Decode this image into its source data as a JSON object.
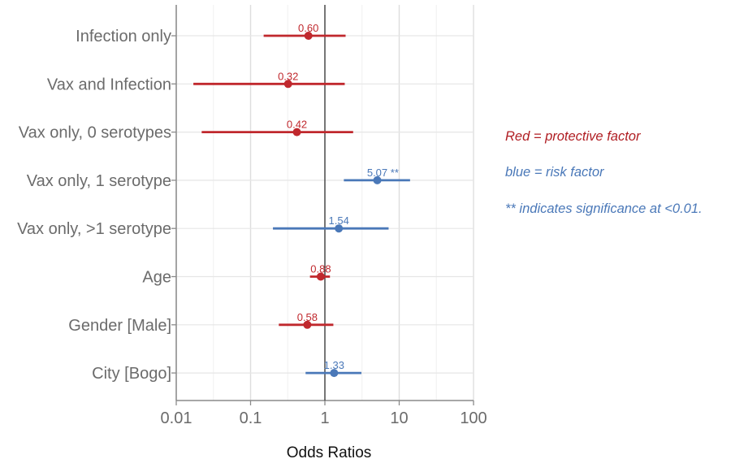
{
  "chart_data": {
    "type": "forest",
    "xlabel": "Odds Ratios",
    "x_scale": "log",
    "xlim": [
      0.01,
      100
    ],
    "x_ticks": [
      0.01,
      0.1,
      1,
      10,
      100
    ],
    "x_tick_labels": [
      "0.01",
      "0.1",
      "1",
      "10",
      "100"
    ],
    "reference_line": 1,
    "grid": true,
    "colors": {
      "protective": "#c0282d",
      "risk": "#4a78b8"
    },
    "rows": [
      {
        "label": "Infection only",
        "or": 0.6,
        "lower": 0.15,
        "upper": 1.9,
        "data_label": "0.60",
        "type": "protective"
      },
      {
        "label": "Vax and Infection",
        "or": 0.32,
        "lower": 0.017,
        "upper": 1.85,
        "data_label": "0.32",
        "type": "protective"
      },
      {
        "label": "Vax only, 0 serotypes",
        "or": 0.42,
        "lower": 0.022,
        "upper": 2.4,
        "data_label": "0.42",
        "type": "protective"
      },
      {
        "label": "Vax only, 1 serotype",
        "or": 5.07,
        "lower": 1.8,
        "upper": 14,
        "data_label": "5.07 **",
        "type": "risk"
      },
      {
        "label": "Vax only, >1 serotype",
        "or": 1.54,
        "lower": 0.2,
        "upper": 7.2,
        "data_label": "1.54",
        "type": "risk"
      },
      {
        "label": "Age",
        "or": 0.88,
        "lower": 0.63,
        "upper": 1.17,
        "data_label": "0.88",
        "type": "protective"
      },
      {
        "label": "Gender [Male]",
        "or": 0.58,
        "lower": 0.24,
        "upper": 1.3,
        "data_label": "0.58",
        "type": "protective"
      },
      {
        "label": "City [Bogo]",
        "or": 1.33,
        "lower": 0.55,
        "upper": 3.1,
        "data_label": "1.33",
        "type": "risk"
      }
    ]
  },
  "legend_notes": {
    "red": "Red = protective factor",
    "blue": "blue = risk factor",
    "significance": "** indicates significance at <0.01."
  }
}
